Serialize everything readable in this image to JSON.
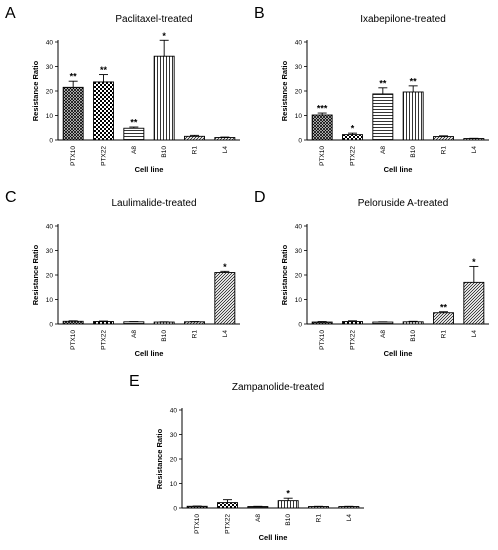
{
  "chart_data": [
    {
      "type": "bar",
      "panel_label": "A",
      "title": "Paclitaxel-treated",
      "ylabel": "Resistance Ratio",
      "xlabel": "Cell line",
      "ylim": [
        0,
        40
      ],
      "yticks": [
        "0",
        "10",
        "20",
        "30",
        "40"
      ],
      "categories": [
        "PTX10",
        "PTX22",
        "A8",
        "B10",
        "R1",
        "L4"
      ],
      "values": [
        21.5,
        23.7,
        4.8,
        34.2,
        1.5,
        1.0
      ],
      "errors": [
        2.5,
        3.0,
        0.5,
        6.5,
        0.4,
        0.2
      ],
      "significance": [
        "**",
        "**",
        "**",
        "*",
        "",
        ""
      ],
      "patterns": [
        "crosshatch",
        "checker",
        "hstripe",
        "vstripe",
        "diag",
        "diag"
      ]
    },
    {
      "type": "bar",
      "panel_label": "B",
      "title": "Ixabepilone-treated",
      "ylabel": "Resistance Ratio",
      "xlabel": "Cell line",
      "ylim": [
        0,
        40
      ],
      "yticks": [
        "0",
        "10",
        "20",
        "30",
        "40"
      ],
      "categories": [
        "PTX10",
        "PTX22",
        "A8",
        "B10",
        "R1",
        "L4"
      ],
      "values": [
        10.2,
        2.2,
        18.8,
        19.6,
        1.4,
        0.6
      ],
      "errors": [
        0.8,
        0.6,
        2.5,
        2.5,
        0.3,
        0.1
      ],
      "significance": [
        "***",
        "*",
        "**",
        "**",
        "",
        ""
      ],
      "patterns": [
        "crosshatch",
        "checker",
        "hstripe",
        "vstripe",
        "diag",
        "diag"
      ]
    },
    {
      "type": "bar",
      "panel_label": "C",
      "title": "Laulimalide-treated",
      "ylabel": "Resistance Ratio",
      "xlabel": "Cell line",
      "ylim": [
        0,
        40
      ],
      "yticks": [
        "0",
        "10",
        "20",
        "30",
        "40"
      ],
      "categories": [
        "PTX10",
        "PTX22",
        "A8",
        "B10",
        "R1",
        "L4"
      ],
      "values": [
        1.1,
        1.0,
        0.9,
        0.8,
        0.9,
        21.0
      ],
      "errors": [
        0.2,
        0.2,
        0.1,
        0.1,
        0.1,
        0.5
      ],
      "significance": [
        "",
        "",
        "",
        "",
        "",
        "*"
      ],
      "patterns": [
        "crosshatch",
        "checker",
        "hstripe",
        "vstripe",
        "diag",
        "diag"
      ]
    },
    {
      "type": "bar",
      "panel_label": "D",
      "title": "Peloruside A-treated",
      "ylabel": "Resistance Ratio",
      "xlabel": "Cell line",
      "ylim": [
        0,
        40
      ],
      "yticks": [
        "0",
        "10",
        "20",
        "30",
        "40"
      ],
      "categories": [
        "PTX10",
        "PTX22",
        "A8",
        "B10",
        "R1",
        "L4"
      ],
      "values": [
        0.8,
        1.0,
        0.8,
        0.9,
        4.6,
        17.0
      ],
      "errors": [
        0.2,
        0.3,
        0.1,
        0.2,
        0.4,
        6.5
      ],
      "significance": [
        "",
        "",
        "",
        "",
        "**",
        "*"
      ],
      "patterns": [
        "crosshatch",
        "checker",
        "hstripe",
        "vstripe",
        "diag",
        "diag"
      ]
    },
    {
      "type": "bar",
      "panel_label": "E",
      "title": "Zampanolide-treated",
      "ylabel": "Resistance Ratio",
      "xlabel": "Cell line",
      "ylim": [
        0,
        40
      ],
      "yticks": [
        "0",
        "10",
        "20",
        "30",
        "40"
      ],
      "categories": [
        "PTX10",
        "PTX22",
        "A8",
        "B10",
        "R1",
        "L4"
      ],
      "values": [
        0.7,
        2.2,
        0.6,
        3.0,
        0.6,
        0.6
      ],
      "errors": [
        0.1,
        1.2,
        0.1,
        1.0,
        0.1,
        0.1
      ],
      "significance": [
        "",
        "",
        "",
        "*",
        "",
        ""
      ],
      "patterns": [
        "crosshatch",
        "checker",
        "hstripe",
        "vstripe",
        "diag",
        "diag"
      ]
    }
  ]
}
